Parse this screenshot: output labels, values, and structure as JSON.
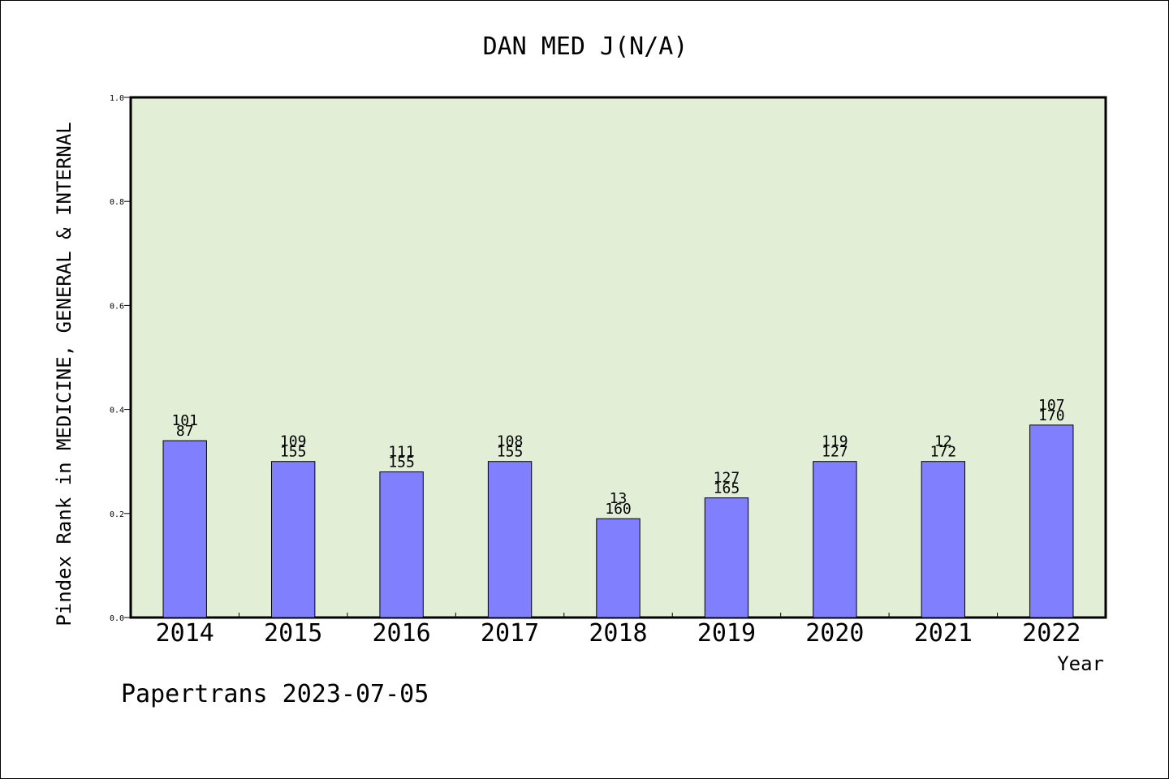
{
  "chart_data": {
    "type": "bar",
    "title": "DAN MED J(N/A)",
    "xlabel": "Year",
    "ylabel": "Pindex Rank in MEDICINE, GENERAL & INTERNAL",
    "ylim": [
      0.0,
      1.0
    ],
    "yticks": [
      "0.0",
      "0.2",
      "0.4",
      "0.6",
      "0.8",
      "1.0"
    ],
    "grid": false,
    "bar_color": "#8080ff",
    "plot_background": "#e2efd6",
    "categories": [
      "2014",
      "2015",
      "2016",
      "2017",
      "2018",
      "2019",
      "2020",
      "2021",
      "2022"
    ],
    "values": [
      0.34,
      0.3,
      0.28,
      0.3,
      0.19,
      0.23,
      0.3,
      0.3,
      0.37
    ],
    "label_top": [
      "101",
      "109",
      "111",
      "108",
      "13",
      "127",
      "119",
      "12",
      "107"
    ],
    "label_bottom": [
      "87",
      "155",
      "155",
      "155",
      "160",
      "165",
      "127",
      "172",
      "170"
    ]
  },
  "footer": {
    "credit": "Papertrans 2023-07-05"
  }
}
